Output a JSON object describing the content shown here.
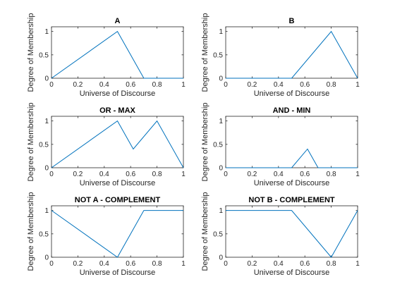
{
  "figure": {
    "background": "#ffffff",
    "line_color": "#0072bd",
    "axis_color": "#262626"
  },
  "chart_data": [
    {
      "type": "line",
      "title": "A",
      "xlabel": "Universe of Discourse",
      "ylabel": "Degree of Membership",
      "xlim": [
        0,
        1
      ],
      "ylim": [
        0,
        1.1
      ],
      "xticks": [
        "0",
        "0.2",
        "0.4",
        "0.6",
        "0.8",
        "1"
      ],
      "yticks": [
        "0",
        "0.5",
        "1"
      ],
      "x": [
        0,
        0.5,
        0.7,
        1
      ],
      "y": [
        0,
        1,
        0,
        0
      ]
    },
    {
      "type": "line",
      "title": "B",
      "xlabel": "Universe of Discourse",
      "ylabel": "Degree of Membership",
      "xlim": [
        0,
        1
      ],
      "ylim": [
        0,
        1.1
      ],
      "xticks": [
        "0",
        "0.2",
        "0.4",
        "0.6",
        "0.8",
        "1"
      ],
      "yticks": [
        "0",
        "0.5",
        "1"
      ],
      "x": [
        0,
        0.5,
        0.8,
        1
      ],
      "y": [
        0,
        0,
        1,
        0
      ]
    },
    {
      "type": "line",
      "title": "OR - MAX",
      "xlabel": "Universe of Discourse",
      "ylabel": "Degree of Membership",
      "xlim": [
        0,
        1
      ],
      "ylim": [
        0,
        1.1
      ],
      "xticks": [
        "0",
        "0.2",
        "0.4",
        "0.6",
        "0.8",
        "1"
      ],
      "yticks": [
        "0",
        "0.5",
        "1"
      ],
      "x": [
        0,
        0.5,
        0.62,
        0.8,
        1
      ],
      "y": [
        0,
        1,
        0.4,
        1,
        0
      ]
    },
    {
      "type": "line",
      "title": "AND - MIN",
      "xlabel": "Universe of Discourse",
      "ylabel": "Degree of Membership",
      "xlim": [
        0,
        1
      ],
      "ylim": [
        0,
        1.1
      ],
      "xticks": [
        "0",
        "0.2",
        "0.4",
        "0.6",
        "0.8",
        "1"
      ],
      "yticks": [
        "0",
        "0.5",
        "1"
      ],
      "x": [
        0,
        0.5,
        0.62,
        0.7,
        1
      ],
      "y": [
        0,
        0,
        0.4,
        0,
        0
      ]
    },
    {
      "type": "line",
      "title": "NOT A - COMPLEMENT",
      "xlabel": "Universe of Discourse",
      "ylabel": "Degree of Membership",
      "xlim": [
        0,
        1
      ],
      "ylim": [
        0,
        1.1
      ],
      "xticks": [
        "0",
        "0.2",
        "0.4",
        "0.6",
        "0.8",
        "1"
      ],
      "yticks": [
        "0",
        "0.5",
        "1"
      ],
      "x": [
        0,
        0.5,
        0.7,
        1
      ],
      "y": [
        1,
        0,
        1,
        1
      ]
    },
    {
      "type": "line",
      "title": "NOT B - COMPLEMENT",
      "xlabel": "Universe of Discourse",
      "ylabel": "Degree of Membership",
      "xlim": [
        0,
        1
      ],
      "ylim": [
        0,
        1.1
      ],
      "xticks": [
        "0",
        "0.2",
        "0.4",
        "0.6",
        "0.8",
        "1"
      ],
      "yticks": [
        "0",
        "0.5",
        "1"
      ],
      "x": [
        0,
        0.5,
        0.8,
        1
      ],
      "y": [
        1,
        1,
        0,
        1
      ]
    }
  ]
}
